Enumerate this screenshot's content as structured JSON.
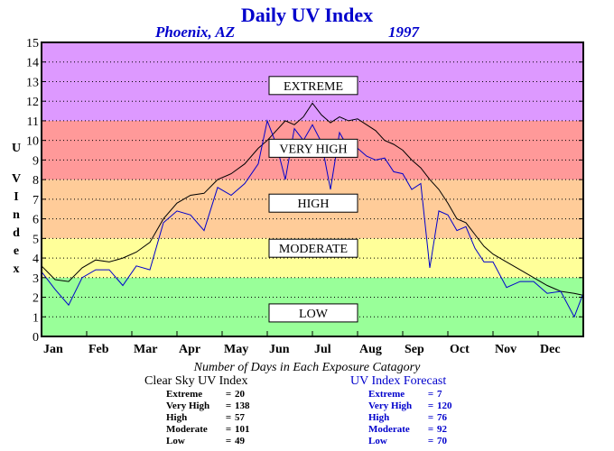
{
  "header": {
    "title": "Daily UV Index",
    "location": "Phoenix, AZ",
    "year": "1997"
  },
  "chart_data": {
    "type": "line",
    "title": "Daily UV Index",
    "xlabel": "",
    "ylabel": "UV Index",
    "ylim": [
      0,
      15
    ],
    "yticks": [
      "0",
      "1",
      "2",
      "3",
      "4",
      "5",
      "6",
      "7",
      "8",
      "9",
      "10",
      "11",
      "12",
      "13",
      "14",
      "15"
    ],
    "xtick_labels": [
      "Jan",
      "Feb",
      "Mar",
      "Apr",
      "May",
      "Jun",
      "Jul",
      "Aug",
      "Sep",
      "Oct",
      "Nov",
      "Dec"
    ],
    "grid": true,
    "bands": [
      {
        "label": "LOW",
        "from": 0,
        "to": 3,
        "color": "#99ff99"
      },
      {
        "label": "MODERATE",
        "from": 3,
        "to": 5,
        "color": "#ffff99"
      },
      {
        "label": "HIGH",
        "from": 5,
        "to": 8,
        "color": "#ffcc99"
      },
      {
        "label": "VERY HIGH",
        "from": 8,
        "to": 11,
        "color": "#ff9999"
      },
      {
        "label": "EXTREME",
        "from": 11,
        "to": 15,
        "color": "#dd99ff"
      }
    ],
    "series": [
      {
        "name": "Clear Sky UV Index",
        "color": "#000000",
        "x_months": [
          0,
          0.3,
          0.6,
          0.9,
          1.2,
          1.5,
          1.8,
          2.1,
          2.4,
          2.7,
          3.0,
          3.3,
          3.6,
          3.9,
          4.2,
          4.5,
          4.8,
          5.0,
          5.2,
          5.4,
          5.6,
          5.8,
          6.0,
          6.2,
          6.4,
          6.6,
          6.8,
          7.0,
          7.2,
          7.4,
          7.6,
          7.8,
          8.0,
          8.2,
          8.4,
          8.6,
          8.8,
          9.0,
          9.2,
          9.4,
          9.6,
          9.8,
          10.0,
          10.3,
          10.6,
          10.9,
          11.2,
          11.5,
          11.8,
          12.0
        ],
        "values": [
          3.6,
          2.9,
          2.8,
          3.5,
          3.9,
          3.8,
          4.0,
          4.3,
          4.8,
          6.0,
          6.8,
          7.2,
          7.3,
          8.0,
          8.3,
          8.8,
          9.6,
          10.0,
          10.5,
          11.0,
          10.8,
          11.2,
          11.9,
          11.3,
          10.9,
          11.2,
          11.0,
          11.1,
          10.8,
          10.5,
          10.0,
          9.8,
          9.5,
          9.0,
          8.6,
          8.0,
          7.5,
          6.8,
          6.0,
          5.8,
          5.2,
          4.6,
          4.2,
          3.8,
          3.4,
          3.0,
          2.6,
          2.3,
          2.2,
          2.1
        ]
      },
      {
        "name": "UV Index Forecast",
        "color": "#0000cc",
        "x_months": [
          0,
          0.3,
          0.6,
          0.9,
          1.2,
          1.5,
          1.8,
          2.1,
          2.4,
          2.7,
          3.0,
          3.3,
          3.6,
          3.9,
          4.2,
          4.5,
          4.8,
          5.0,
          5.2,
          5.4,
          5.6,
          5.8,
          6.0,
          6.2,
          6.4,
          6.6,
          6.8,
          7.0,
          7.2,
          7.4,
          7.6,
          7.8,
          8.0,
          8.2,
          8.4,
          8.6,
          8.8,
          9.0,
          9.2,
          9.4,
          9.6,
          9.8,
          10.0,
          10.3,
          10.6,
          10.9,
          11.2,
          11.5,
          11.8,
          12.0
        ],
        "values": [
          3.3,
          2.4,
          1.6,
          3.0,
          3.4,
          3.4,
          2.6,
          3.6,
          3.4,
          5.8,
          6.4,
          6.2,
          5.4,
          7.6,
          7.2,
          7.8,
          8.8,
          11.0,
          9.8,
          8.0,
          10.6,
          10.0,
          10.8,
          9.9,
          7.5,
          10.4,
          9.6,
          9.6,
          9.2,
          9.0,
          9.1,
          8.4,
          8.3,
          7.5,
          7.8,
          3.5,
          6.4,
          6.2,
          5.4,
          5.6,
          4.5,
          3.8,
          3.8,
          2.5,
          2.8,
          2.8,
          2.2,
          2.3,
          1.0,
          2.2
        ]
      }
    ]
  },
  "exposure_days": {
    "title": "Number of Days in Each Exposure Catagory",
    "clear_sky": {
      "heading": "Clear Sky UV Index",
      "rows": [
        {
          "label": "Extreme",
          "value": "20"
        },
        {
          "label": "Very High",
          "value": "138"
        },
        {
          "label": "High",
          "value": "57"
        },
        {
          "label": "Moderate",
          "value": "101"
        },
        {
          "label": "Low",
          "value": "49"
        }
      ]
    },
    "forecast": {
      "heading": "UV Index Forecast",
      "rows": [
        {
          "label": "Extreme",
          "value": "7"
        },
        {
          "label": "Very High",
          "value": "120"
        },
        {
          "label": "High",
          "value": "76"
        },
        {
          "label": "Moderate",
          "value": "92"
        },
        {
          "label": "Low",
          "value": "70"
        }
      ]
    }
  }
}
